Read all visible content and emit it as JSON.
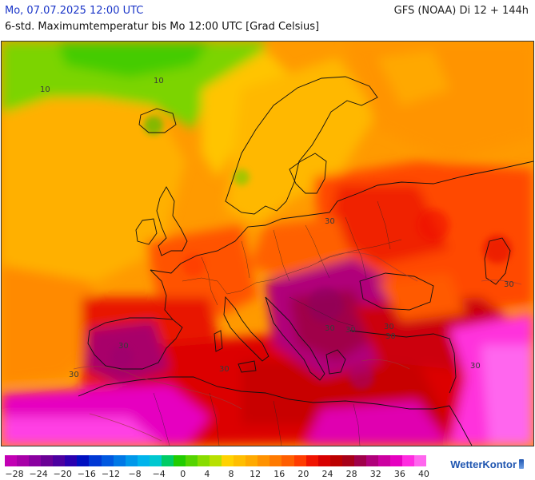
{
  "header": {
    "date": "Mo, 07.07.2025 12:00 UTC",
    "model": "GFS (NOAA) Di 12 + 144h",
    "subtitle": "6-std. Maximumtemperatur bis Mo 12:00 UTC [Grad Celsius]"
  },
  "map": {
    "contour_labels": [
      "10",
      "10",
      "30",
      "30",
      "30",
      "30",
      "30",
      "30",
      "30",
      "30",
      "30",
      "30"
    ]
  },
  "legend": {
    "colors": [
      "#c200b4",
      "#a800a8",
      "#8a00a0",
      "#6a0096",
      "#4c00a0",
      "#2a00b0",
      "#0010c0",
      "#0038d4",
      "#0058e0",
      "#0078e6",
      "#0098ea",
      "#00b4ec",
      "#00c8d0",
      "#00cc66",
      "#22cc00",
      "#55d400",
      "#88dc00",
      "#b8e000",
      "#ffd200",
      "#ffbe00",
      "#ffaa00",
      "#ff9200",
      "#ff7a00",
      "#ff5e00",
      "#ff3c00",
      "#f01400",
      "#d80000",
      "#bc0000",
      "#a80018",
      "#a0004a",
      "#b0007a",
      "#cc00a0",
      "#e600c0",
      "#ff2ce0",
      "#ff66ee"
    ],
    "labels": [
      "−28",
      "−24",
      "−20",
      "−16",
      "−12",
      "−8",
      "−4",
      "0",
      "4",
      "8",
      "12",
      "16",
      "20",
      "24",
      "28",
      "32",
      "36",
      "40"
    ]
  },
  "brand": "WetterKontor"
}
